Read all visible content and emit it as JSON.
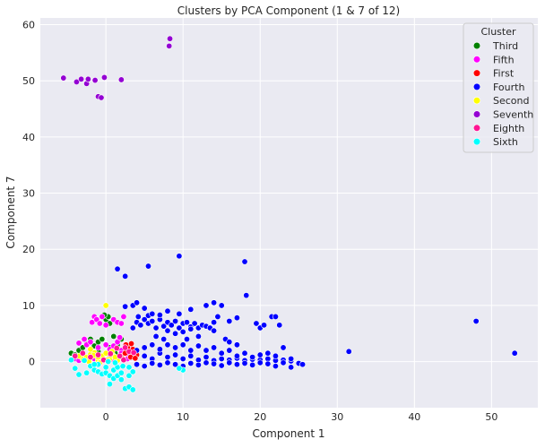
{
  "chart_data": {
    "type": "scatter",
    "title": "Clusters by PCA Component (1 & 7 of 12)",
    "xlabel": "Component 1",
    "ylabel": "Component 7",
    "xlim": [
      -8.5,
      56
    ],
    "ylim": [
      -8.2,
      61.2
    ],
    "xticks": [
      0,
      10,
      20,
      30,
      40,
      50
    ],
    "yticks": [
      0,
      10,
      20,
      30,
      40,
      50,
      60
    ],
    "grid": true,
    "legend": {
      "title": "Cluster",
      "placement": "top-right"
    },
    "series": [
      {
        "name": "Third",
        "color": "#008000",
        "points": [
          [
            -4.5,
            1.5
          ],
          [
            -4,
            1.2
          ],
          [
            -3.5,
            2
          ],
          [
            -3,
            2.5
          ],
          [
            -2.5,
            3.2
          ],
          [
            -2,
            4
          ],
          [
            -1.5,
            2.8
          ],
          [
            -1,
            3.5
          ],
          [
            -0.5,
            4
          ],
          [
            0,
            7.5
          ],
          [
            0.3,
            8
          ],
          [
            0.5,
            6.8
          ],
          [
            1,
            4.5
          ],
          [
            1.5,
            3
          ],
          [
            2,
            4
          ],
          [
            -3,
            0.5
          ],
          [
            -2,
            1
          ],
          [
            -1,
            1.8
          ],
          [
            0.5,
            2.5
          ],
          [
            1.2,
            1.5
          ],
          [
            2.5,
            2
          ],
          [
            -0.2,
            8.3
          ],
          [
            -1.5,
            0.8
          ],
          [
            0.8,
            0.5
          ]
        ]
      },
      {
        "name": "Fifth",
        "color": "#ff00ff",
        "points": [
          [
            -1.8,
            7
          ],
          [
            -1.5,
            8
          ],
          [
            -1.2,
            7.5
          ],
          [
            -0.8,
            6.8
          ],
          [
            -0.5,
            8
          ],
          [
            0,
            6.5
          ],
          [
            1,
            7.5
          ],
          [
            1.5,
            7
          ],
          [
            2,
            6.8
          ],
          [
            2.3,
            8
          ],
          [
            -2.5,
            3
          ],
          [
            -2,
            3.5
          ],
          [
            -1,
            2.5
          ],
          [
            0,
            3
          ],
          [
            0.5,
            2.2
          ],
          [
            1,
            2.8
          ],
          [
            1.5,
            3.5
          ],
          [
            2,
            2
          ],
          [
            2.5,
            3
          ],
          [
            3,
            2.5
          ],
          [
            -4,
            0.5
          ],
          [
            -3.5,
            0.2
          ],
          [
            -3,
            1
          ],
          [
            -2.5,
            0.2
          ],
          [
            -1.5,
            0.5
          ],
          [
            -0.5,
            0.8
          ],
          [
            0.5,
            1.2
          ],
          [
            1,
            0.3
          ],
          [
            2,
            1.5
          ],
          [
            3,
            1
          ],
          [
            -2.8,
            4
          ],
          [
            1.8,
            4.3
          ],
          [
            -3.5,
            3.3
          ],
          [
            2.8,
            0.5
          ]
        ]
      },
      {
        "name": "First",
        "color": "#ff0000",
        "points": [
          [
            2,
            1
          ],
          [
            2.5,
            1.5
          ],
          [
            3,
            2
          ],
          [
            3.5,
            1.3
          ],
          [
            3.2,
            0.8
          ],
          [
            2.8,
            2.5
          ],
          [
            3.5,
            2.2
          ],
          [
            4,
            1.2
          ],
          [
            2.2,
            0.5
          ],
          [
            3.8,
            0.6
          ],
          [
            2.6,
            3
          ],
          [
            3.3,
            3.2
          ]
        ]
      },
      {
        "name": "Fourth",
        "color": "#0000ff",
        "points": [
          [
            5,
            1
          ],
          [
            6,
            0.5
          ],
          [
            7,
            1.5
          ],
          [
            8,
            0.8
          ],
          [
            9,
            1.2
          ],
          [
            10,
            0.5
          ],
          [
            11,
            1
          ],
          [
            12,
            0.3
          ],
          [
            13,
            0.8
          ],
          [
            14,
            0.2
          ],
          [
            15,
            0.5
          ],
          [
            16,
            0.3
          ],
          [
            17,
            0.6
          ],
          [
            18,
            0.2
          ],
          [
            19,
            0.4
          ],
          [
            20,
            0.3
          ],
          [
            21,
            0.5
          ],
          [
            22,
            0.2
          ],
          [
            23,
            0.3
          ],
          [
            24,
            0.1
          ],
          [
            25,
            -0.3
          ],
          [
            25.5,
            -0.5
          ],
          [
            4,
            2
          ],
          [
            5,
            2.5
          ],
          [
            6,
            3
          ],
          [
            7,
            2.2
          ],
          [
            8,
            3
          ],
          [
            9,
            2.5
          ],
          [
            10,
            3
          ],
          [
            11,
            2
          ],
          [
            12,
            2.8
          ],
          [
            13,
            2
          ],
          [
            14,
            2.5
          ],
          [
            15,
            1.5
          ],
          [
            16,
            2
          ],
          [
            17,
            1
          ],
          [
            18,
            1.5
          ],
          [
            19,
            0.8
          ],
          [
            20,
            1.2
          ],
          [
            4,
            -0.5
          ],
          [
            5,
            -0.8
          ],
          [
            6,
            -0.3
          ],
          [
            7,
            -0.6
          ],
          [
            8,
            -0.2
          ],
          [
            9,
            -0.5
          ],
          [
            10,
            -0.8
          ],
          [
            11,
            -0.3
          ],
          [
            12,
            -0.6
          ],
          [
            13,
            -0.2
          ],
          [
            14,
            -0.4
          ],
          [
            15,
            -0.7
          ],
          [
            16,
            -0.2
          ],
          [
            17,
            -0.5
          ],
          [
            18,
            -0.3
          ],
          [
            19,
            -0.6
          ],
          [
            20,
            -0.2
          ],
          [
            21,
            -0.4
          ],
          [
            22,
            -0.8
          ],
          [
            23,
            -0.2
          ],
          [
            24,
            -1
          ],
          [
            4,
            7
          ],
          [
            4.5,
            6.5
          ],
          [
            5,
            7.5
          ],
          [
            5.5,
            6.8
          ],
          [
            6,
            7.2
          ],
          [
            6.5,
            6
          ],
          [
            7,
            7.5
          ],
          [
            7.5,
            6.3
          ],
          [
            8,
            7
          ],
          [
            8.5,
            6.5
          ],
          [
            9,
            7.2
          ],
          [
            9.5,
            6
          ],
          [
            10,
            6.8
          ],
          [
            10.5,
            7
          ],
          [
            11,
            6.2
          ],
          [
            11.5,
            6.8
          ],
          [
            12,
            6
          ],
          [
            12.5,
            6.5
          ],
          [
            13,
            6.3
          ],
          [
            3.5,
            6
          ],
          [
            4.2,
            8
          ],
          [
            5.5,
            8.2
          ],
          [
            7,
            8.3
          ],
          [
            8,
            5.5
          ],
          [
            9,
            5
          ],
          [
            10,
            5.3
          ],
          [
            11,
            5.8
          ],
          [
            3.5,
            10
          ],
          [
            4,
            10.5
          ],
          [
            5,
            9.5
          ],
          [
            6,
            8.5
          ],
          [
            8,
            9
          ],
          [
            9.5,
            8.5
          ],
          [
            11,
            9.3
          ],
          [
            13,
            10
          ],
          [
            14,
            10.5
          ],
          [
            15,
            10
          ],
          [
            2.5,
            9.8
          ],
          [
            14,
            7
          ],
          [
            14.5,
            8
          ],
          [
            16,
            7.2
          ],
          [
            17,
            7.8
          ],
          [
            13.5,
            6
          ],
          [
            19.5,
            6.8
          ],
          [
            20,
            6
          ],
          [
            20.5,
            6.5
          ],
          [
            21.5,
            8
          ],
          [
            22,
            8
          ],
          [
            22.5,
            6.5
          ],
          [
            1.5,
            16.5
          ],
          [
            2.5,
            15.2
          ],
          [
            5.5,
            17
          ],
          [
            9.5,
            18.8
          ],
          [
            18,
            17.8
          ],
          [
            18.2,
            11.8
          ],
          [
            31.5,
            1.8
          ],
          [
            48,
            7.2
          ],
          [
            53,
            1.5
          ],
          [
            23,
            2.5
          ],
          [
            22,
            1
          ],
          [
            21,
            1.5
          ],
          [
            24,
            0.5
          ],
          [
            15.5,
            4
          ],
          [
            16,
            3.5
          ],
          [
            17,
            3
          ],
          [
            14,
            5.5
          ],
          [
            12,
            4.5
          ],
          [
            10.5,
            4
          ],
          [
            7.5,
            4
          ],
          [
            6.5,
            4.5
          ]
        ]
      },
      {
        "name": "Second",
        "color": "#ffff00",
        "points": [
          [
            -3,
            0.5
          ],
          [
            -2.5,
            0.8
          ],
          [
            -2,
            1.3
          ],
          [
            -1.5,
            1.6
          ],
          [
            -1,
            0.3
          ],
          [
            -0.5,
            1
          ],
          [
            0,
            1.5
          ],
          [
            0.5,
            0.5
          ],
          [
            1,
            1
          ],
          [
            1.5,
            0.2
          ],
          [
            -3.5,
            1
          ],
          [
            -2,
            2.2
          ],
          [
            0,
            10
          ],
          [
            -1,
            0.8
          ],
          [
            0.2,
            0.3
          ],
          [
            -0.8,
            -0.2
          ],
          [
            1.2,
            0.8
          ],
          [
            -2.2,
            0
          ],
          [
            0.8,
            1.8
          ],
          [
            -1.6,
            1.1
          ]
        ]
      },
      {
        "name": "Seventh",
        "color": "#9400d3",
        "points": [
          [
            -5.5,
            50.5
          ],
          [
            -3.8,
            49.8
          ],
          [
            -3.2,
            50.3
          ],
          [
            -2.5,
            49.5
          ],
          [
            -2.3,
            50.3
          ],
          [
            -1.4,
            50.1
          ],
          [
            -1,
            47.2
          ],
          [
            -0.6,
            47
          ],
          [
            -0.2,
            50.6
          ],
          [
            2,
            50.2
          ],
          [
            8.3,
            57.5
          ],
          [
            8.2,
            56.2
          ]
        ]
      },
      {
        "name": "Eighth",
        "color": "#ff1493",
        "points": [
          [
            -4,
            1
          ],
          [
            -3,
            1.5
          ],
          [
            -2,
            0.8
          ],
          [
            -1,
            1.2
          ],
          [
            1.8,
            1
          ],
          [
            2.3,
            0.3
          ],
          [
            3,
            1.8
          ],
          [
            2.5,
            2.5
          ],
          [
            -0.3,
            0.3
          ],
          [
            0.6,
            1.4
          ],
          [
            1.4,
            2.4
          ],
          [
            3.6,
            1.6
          ]
        ]
      },
      {
        "name": "Sixth",
        "color": "#00ffff",
        "points": [
          [
            -4.5,
            0.3
          ],
          [
            -4,
            -1.2
          ],
          [
            -3.5,
            -2.3
          ],
          [
            -2.5,
            -2
          ],
          [
            -2,
            -0.8
          ],
          [
            -1.5,
            -1.5
          ],
          [
            -1,
            -1.8
          ],
          [
            -0.5,
            -2.2
          ],
          [
            0,
            -2
          ],
          [
            0.5,
            -2.5
          ],
          [
            1,
            -3
          ],
          [
            1.5,
            -2.5
          ],
          [
            2,
            -3.2
          ],
          [
            2.5,
            -4.8
          ],
          [
            3,
            -4.5
          ],
          [
            3.5,
            -5
          ],
          [
            0.5,
            -4
          ],
          [
            -1,
            -0.5
          ],
          [
            0,
            -1
          ],
          [
            1,
            -1.5
          ],
          [
            1.5,
            -1
          ],
          [
            2,
            -2
          ],
          [
            3,
            -2.5
          ],
          [
            3.5,
            -1.8
          ],
          [
            -2.8,
            0.2
          ],
          [
            -1.5,
            -0.5
          ],
          [
            0.3,
            0
          ],
          [
            1.2,
            -0.2
          ],
          [
            2.2,
            -0.8
          ],
          [
            3,
            -1
          ],
          [
            10,
            -1.5
          ],
          [
            9.5,
            -1.2
          ]
        ]
      }
    ]
  }
}
